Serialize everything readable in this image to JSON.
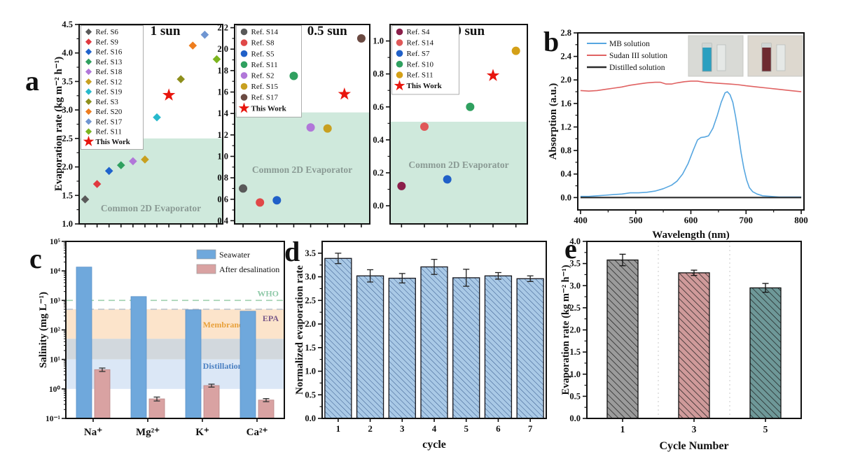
{
  "figure_labels": {
    "a": "a",
    "b": "b",
    "c": "c",
    "d": "d",
    "e": "e"
  },
  "chart_data": [
    {
      "id": "a",
      "type": "scatter",
      "ylabel": "Evaporation rate (kg m⁻² h⁻¹)",
      "region_label": "Common 2D Evaporator",
      "subplots": [
        {
          "condition": "1 sun",
          "marker": "diamond",
          "ylim": [
            1.0,
            4.5
          ],
          "yticks": [
            1.0,
            1.5,
            2.0,
            2.5,
            3.0,
            3.5,
            4.0,
            4.5
          ],
          "ytick_step": 0.5,
          "region_top": 2.5,
          "xmax": 12,
          "points": [
            {
              "label": "Ref. S6",
              "color": "#595959",
              "x": 1,
              "y": 1.43
            },
            {
              "label": "Ref. S9",
              "color": "#e0393f",
              "x": 2,
              "y": 1.7
            },
            {
              "label": "Ref. S16",
              "color": "#1f63cc",
              "x": 3,
              "y": 1.93
            },
            {
              "label": "Ref. S13",
              "color": "#2fa05f",
              "x": 4,
              "y": 2.03
            },
            {
              "label": "Ref. S18",
              "color": "#b177d9",
              "x": 5,
              "y": 2.1
            },
            {
              "label": "Ref. S12",
              "color": "#c8a020",
              "x": 6,
              "y": 2.13
            },
            {
              "label": "Ref. S19",
              "color": "#27b9cc",
              "x": 7,
              "y": 2.87
            },
            {
              "label": "Ref. S3",
              "color": "#8e8f1c",
              "x": 9,
              "y": 3.54
            },
            {
              "label": "Ref. S20",
              "color": "#ee7d1e",
              "x": 10,
              "y": 4.13
            },
            {
              "label": "Ref. S17",
              "color": "#6f96d2",
              "x": 11,
              "y": 4.32
            },
            {
              "label": "Ref. S11",
              "color": "#7cb51f",
              "x": 12,
              "y": 3.89
            },
            {
              "label": "This Work",
              "color": "#e8150d",
              "x": 8,
              "y": 3.26,
              "marker": "star"
            }
          ]
        },
        {
          "condition": "0.5 sun",
          "marker": "circle",
          "ylim": [
            0.37,
            2.23
          ],
          "yticks": [
            0.4,
            0.6,
            0.8,
            1.0,
            1.2,
            1.4,
            1.6,
            1.8,
            2.0,
            2.2
          ],
          "ytick_step": 0.2,
          "region_top": 1.41,
          "xmax": 8,
          "points": [
            {
              "label": "Ref. S14",
              "color": "#595959",
              "x": 1,
              "y": 0.7
            },
            {
              "label": "Ref. S8",
              "color": "#e04848",
              "x": 2,
              "y": 0.57
            },
            {
              "label": "Ref. S5",
              "color": "#2060c8",
              "x": 3,
              "y": 0.59
            },
            {
              "label": "Ref. S11",
              "color": "#2fa05f",
              "x": 4,
              "y": 1.75
            },
            {
              "label": "Ref. S2",
              "color": "#b177d9",
              "x": 5,
              "y": 1.27
            },
            {
              "label": "Ref. S15",
              "color": "#c8a020",
              "x": 6,
              "y": 1.26
            },
            {
              "label": "Ref. S17",
              "color": "#6b4a42",
              "x": 8,
              "y": 2.1
            },
            {
              "label": "This Work",
              "color": "#e8150d",
              "x": 7,
              "y": 1.58,
              "marker": "star"
            }
          ]
        },
        {
          "condition": "0 sun",
          "marker": "circle",
          "ylim": [
            -0.11,
            1.1
          ],
          "yticks": [
            0.0,
            0.2,
            0.4,
            0.6,
            0.8,
            1.0
          ],
          "ytick_step": 0.2,
          "region_top": 0.51,
          "xmax": 6,
          "points": [
            {
              "label": "Ref. S4",
              "color": "#8b1f4a",
              "x": 1,
              "y": 0.12
            },
            {
              "label": "Ref. S14",
              "color": "#e05858",
              "x": 2,
              "y": 0.48
            },
            {
              "label": "Ref. S7",
              "color": "#2060c8",
              "x": 3,
              "y": 0.16
            },
            {
              "label": "Ref. S10",
              "color": "#2fa05f",
              "x": 4,
              "y": 0.6
            },
            {
              "label": "Ref. S11",
              "color": "#d4a017",
              "x": 6,
              "y": 0.94
            },
            {
              "label": "This Work",
              "color": "#e8150d",
              "x": 5,
              "y": 0.79,
              "marker": "star"
            }
          ]
        }
      ]
    },
    {
      "id": "b",
      "type": "line",
      "xlabel": "Wavelength (nm)",
      "ylabel": "Absorption (a.u.)",
      "xlim": [
        395,
        805
      ],
      "xticks": [
        400,
        500,
        600,
        700,
        800
      ],
      "ylim": [
        -0.21,
        2.8
      ],
      "yticks": [
        0.0,
        0.4,
        0.8,
        1.2,
        1.6,
        2.0,
        2.4,
        2.8
      ],
      "series": [
        {
          "name": "MB solution",
          "color": "#56a6e0",
          "width": 1.6,
          "points": [
            [
              400,
              0.02
            ],
            [
              415,
              0.02
            ],
            [
              430,
              0.03
            ],
            [
              445,
              0.04
            ],
            [
              460,
              0.05
            ],
            [
              475,
              0.06
            ],
            [
              490,
              0.08
            ],
            [
              505,
              0.08
            ],
            [
              520,
              0.09
            ],
            [
              535,
              0.11
            ],
            [
              550,
              0.15
            ],
            [
              565,
              0.21
            ],
            [
              575,
              0.28
            ],
            [
              585,
              0.4
            ],
            [
              595,
              0.58
            ],
            [
              605,
              0.82
            ],
            [
              612,
              0.98
            ],
            [
              618,
              1.02
            ],
            [
              625,
              1.03
            ],
            [
              632,
              1.05
            ],
            [
              640,
              1.18
            ],
            [
              648,
              1.4
            ],
            [
              655,
              1.62
            ],
            [
              662,
              1.78
            ],
            [
              666,
              1.8
            ],
            [
              671,
              1.75
            ],
            [
              676,
              1.62
            ],
            [
              681,
              1.38
            ],
            [
              686,
              1.08
            ],
            [
              691,
              0.76
            ],
            [
              696,
              0.5
            ],
            [
              701,
              0.3
            ],
            [
              706,
              0.17
            ],
            [
              712,
              0.1
            ],
            [
              720,
              0.06
            ],
            [
              730,
              0.03
            ],
            [
              745,
              0.02
            ],
            [
              760,
              0.01
            ],
            [
              780,
              0.01
            ],
            [
              800,
              0.01
            ]
          ]
        },
        {
          "name": "Sudan III solution",
          "color": "#e06262",
          "width": 1.6,
          "points": [
            [
              400,
              1.82
            ],
            [
              415,
              1.81
            ],
            [
              430,
              1.82
            ],
            [
              445,
              1.84
            ],
            [
              460,
              1.86
            ],
            [
              475,
              1.88
            ],
            [
              490,
              1.91
            ],
            [
              505,
              1.93
            ],
            [
              520,
              1.95
            ],
            [
              535,
              1.96
            ],
            [
              545,
              1.96
            ],
            [
              555,
              1.93
            ],
            [
              565,
              1.93
            ],
            [
              575,
              1.95
            ],
            [
              588,
              1.97
            ],
            [
              600,
              1.98
            ],
            [
              612,
              1.98
            ],
            [
              625,
              1.96
            ],
            [
              640,
              1.95
            ],
            [
              655,
              1.94
            ],
            [
              670,
              1.93
            ],
            [
              685,
              1.92
            ],
            [
              700,
              1.9
            ],
            [
              720,
              1.88
            ],
            [
              740,
              1.86
            ],
            [
              760,
              1.84
            ],
            [
              780,
              1.82
            ],
            [
              800,
              1.8
            ]
          ]
        },
        {
          "name": "Distilled solution",
          "color": "#2b2b2b",
          "width": 2.2,
          "points": [
            [
              400,
              0.0
            ],
            [
              800,
              0.0
            ]
          ]
        }
      ],
      "insets": [
        {
          "name": "MB cuvette photo",
          "bg": "#d9dad6",
          "liquid": "#2a9fc0"
        },
        {
          "name": "Sudan III cuvette photo",
          "bg": "#ddd8cf",
          "liquid": "#6e2a30"
        }
      ]
    },
    {
      "id": "c",
      "type": "bar-log",
      "ylabel": "Salinity (mg L⁻¹)",
      "categories": [
        "Na⁺",
        "Mg²⁺",
        "K⁺",
        "Ca²⁺"
      ],
      "ylim_exp": [
        -1,
        5
      ],
      "series": [
        {
          "name": "Seawater",
          "color": "#6fa8dc",
          "edge": "#5b92c9",
          "values": [
            13500,
            1350,
            480,
            430
          ]
        },
        {
          "name": "After desalination",
          "color": "#d9a2a2",
          "edge": "#b98585",
          "values": [
            4.5,
            0.46,
            1.3,
            0.42
          ],
          "errors": [
            0.6,
            0.07,
            0.15,
            0.05
          ]
        }
      ],
      "guidelines": [
        {
          "label": "WHO",
          "value": 1000,
          "line_color": "#9fd0ae",
          "label_color": "#8fc9a8"
        },
        {
          "label": "EPA",
          "value": 500,
          "line_color": "#c3c9cf",
          "label_color": "#7a5a8a"
        }
      ],
      "bands": [
        {
          "label": "Membrane",
          "range": [
            50,
            500
          ],
          "color": "#fce4cb",
          "label_color": "#e8a03a"
        },
        {
          "label": "",
          "range": [
            10,
            50
          ],
          "color": "#d2d8dd",
          "label_color": "#888888"
        },
        {
          "label": "Distillation",
          "range": [
            1,
            10
          ],
          "color": "#dbe7f6",
          "label_color": "#4a7fc1"
        }
      ]
    },
    {
      "id": "d",
      "type": "bar",
      "xlabel": "cycle",
      "ylabel": "Normalized evaporation rate",
      "categories": [
        "1",
        "2",
        "3",
        "4",
        "5",
        "6",
        "7"
      ],
      "values": [
        3.39,
        3.02,
        2.97,
        3.21,
        2.98,
        3.02,
        2.96
      ],
      "errors": [
        0.11,
        0.13,
        0.1,
        0.16,
        0.18,
        0.07,
        0.06
      ],
      "ylim": [
        0,
        3.75
      ],
      "yticks": [
        0.0,
        0.5,
        1.0,
        1.5,
        2.0,
        2.5,
        3.0,
        3.5
      ],
      "bar_fill": "#a9c9e6",
      "hatch_color": "#33568a",
      "edge": "#16161d"
    },
    {
      "id": "e",
      "type": "bar-multi",
      "xlabel": "Cycle Number",
      "ylabel": "Evaporation rate (kg m⁻² h⁻¹)",
      "categories": [
        "1",
        "3",
        "5"
      ],
      "values": [
        3.58,
        3.29,
        2.95
      ],
      "errors": [
        0.13,
        0.06,
        0.1
      ],
      "bar_fills": [
        "#9b9b9b",
        "#cf9a9a",
        "#6e9898"
      ],
      "hatch_color": "#1c1c1c",
      "edge": "#111111",
      "ylim": [
        0,
        4.0
      ],
      "yticks": [
        0.0,
        0.5,
        1.0,
        1.5,
        2.0,
        2.5,
        3.0,
        3.5,
        4.0
      ]
    }
  ]
}
